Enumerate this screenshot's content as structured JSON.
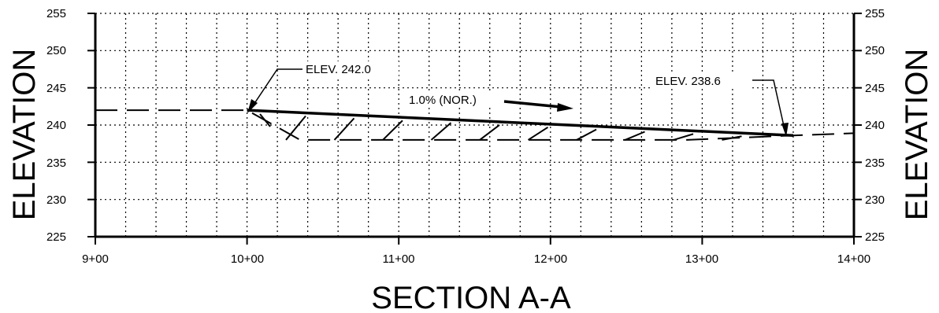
{
  "title": "SECTION A-A",
  "axes": {
    "left_label": "ELEVATION",
    "right_label": "ELEVATION",
    "y_ticks": [
      "255",
      "250",
      "245",
      "240",
      "235",
      "230",
      "225"
    ],
    "x_ticks": [
      "9+00",
      "10+00",
      "11+00",
      "12+00",
      "13+00",
      "14+00"
    ]
  },
  "annotations": {
    "elev_left": "ELEV. 242.0",
    "elev_right": "ELEV. 238.6",
    "slope": "1.0% (NOR.)"
  },
  "profile": {
    "existing_ground": [
      [
        9.0,
        242.0
      ],
      [
        10.0,
        242.0
      ],
      [
        10.35,
        238.0
      ],
      [
        12.9,
        238.0
      ],
      [
        13.6,
        238.6
      ],
      [
        14.0,
        238.9
      ]
    ],
    "finished_grade": [
      [
        10.0,
        242.0
      ],
      [
        13.6,
        238.6
      ]
    ],
    "x_range": [
      9.0,
      14.0
    ],
    "y_range": [
      225,
      255
    ]
  }
}
